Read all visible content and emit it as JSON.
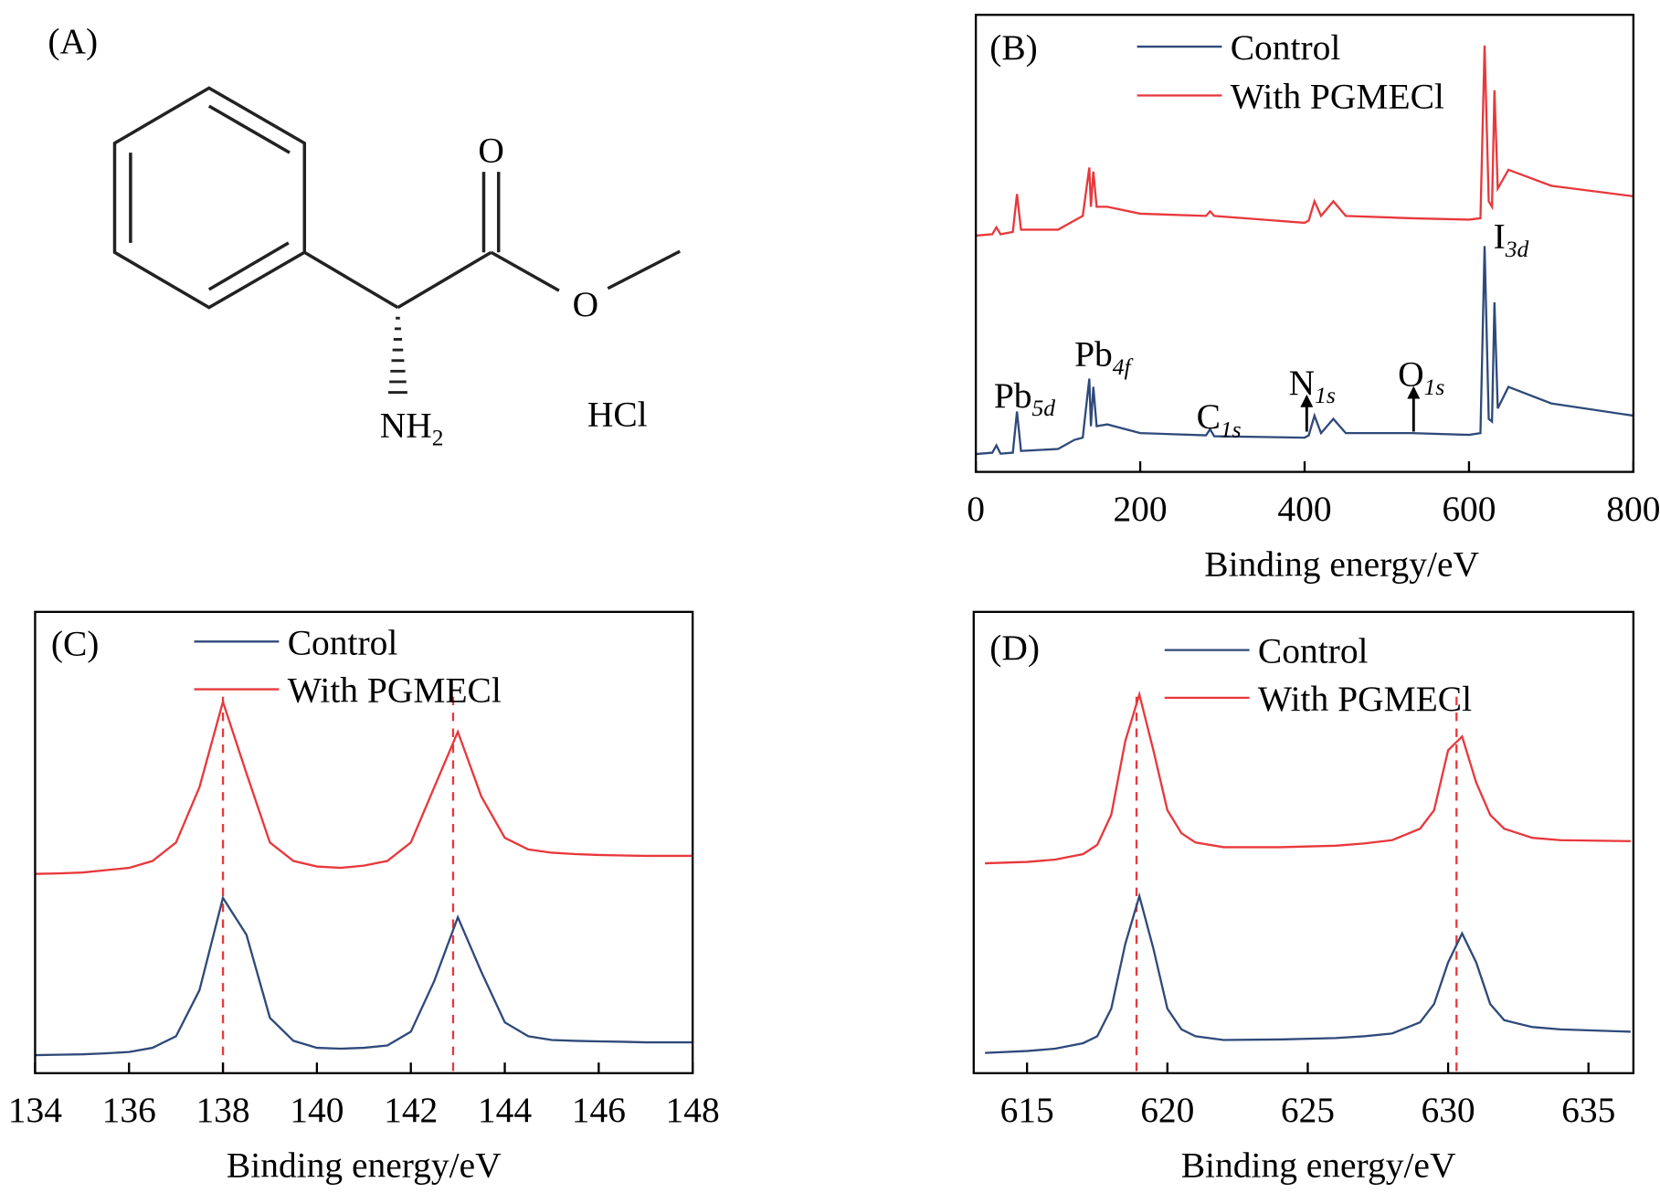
{
  "structure": {
    "label": "(A)",
    "atoms": [
      {
        "text": "O"
      },
      {
        "text": "O"
      },
      {
        "text": "NH",
        "sub": "2"
      },
      {
        "text": "HCl"
      }
    ]
  },
  "chart_data": [
    {
      "type": "line",
      "label": "(B)",
      "xlabel": "Binding energy/eV",
      "legend": "upper center",
      "xlim": [
        0,
        800
      ],
      "xticks": [
        0,
        200,
        400,
        600,
        800
      ],
      "ylim": [
        0,
        100
      ],
      "x": [
        0,
        20,
        25,
        30,
        45,
        50,
        55,
        100,
        120,
        130,
        138,
        140,
        143,
        147,
        160,
        200,
        280,
        285,
        290,
        400,
        405,
        412,
        420,
        435,
        450,
        530,
        600,
        614,
        619,
        624,
        628,
        631,
        635,
        648,
        700,
        800
      ],
      "series": [
        {
          "name": "Control",
          "color": "#2f4a7a",
          "values": [
            3.9,
            4.2,
            5.8,
            4,
            4.2,
            13.2,
            4.6,
            5,
            7,
            7.5,
            20.4,
            10,
            18.6,
            10,
            10.4,
            8.5,
            8,
            9.3,
            7.8,
            7.5,
            8,
            12.3,
            8.5,
            11.6,
            8.5,
            8.5,
            8.1,
            8.5,
            49.4,
            11.6,
            11,
            37.1,
            13.9,
            18.6,
            15,
            12.3
          ]
        },
        {
          "name": "With PGMECl",
          "color": "#e8383c",
          "values": [
            51.7,
            52,
            53.5,
            52,
            52.5,
            60.8,
            53,
            53,
            55,
            56,
            66.6,
            58,
            65.7,
            58,
            58,
            56.5,
            56,
            57,
            56,
            54.5,
            55,
            59.2,
            56,
            59.2,
            56,
            55.5,
            55.2,
            55.5,
            93.3,
            59.2,
            58,
            83.5,
            62,
            66.1,
            62.6,
            60.3
          ]
        }
      ],
      "annotations": [
        {
          "text": "Pb",
          "sub": "5d"
        },
        {
          "text": "Pb",
          "sub": "4f"
        },
        {
          "text": "C",
          "sub": "1s"
        },
        {
          "text": "N",
          "sub": "1s"
        },
        {
          "text": "O",
          "sub": "1s"
        },
        {
          "text": "I",
          "sub": "3d"
        }
      ]
    },
    {
      "type": "line",
      "label": "(C)",
      "xlabel": "Binding energy/eV",
      "legend": "upper left",
      "xlim": [
        134,
        148
      ],
      "xticks": [
        134,
        136,
        138,
        140,
        142,
        144,
        146,
        148
      ],
      "ylim": [
        0,
        100
      ],
      "reference_lines": [
        138.0,
        142.9
      ],
      "reference_color": "#e8383c",
      "x": [
        134,
        134.5,
        135,
        135.5,
        136,
        136.5,
        137,
        137.5,
        138,
        138.5,
        139,
        139.5,
        140,
        140.5,
        141,
        141.5,
        142,
        142.5,
        143,
        143.5,
        144,
        144.5,
        145,
        145.5,
        146,
        146.5,
        147,
        147.5,
        148
      ],
      "series": [
        {
          "name": "Control",
          "color": "#2f4a7a",
          "values": [
            3.9,
            4,
            4.1,
            4.3,
            4.6,
            5.5,
            8,
            18,
            38,
            30,
            12,
            7,
            5.5,
            5.3,
            5.5,
            6,
            9,
            20,
            33.8,
            22,
            11,
            8,
            7.2,
            7,
            6.9,
            6.8,
            6.7,
            6.7,
            6.7
          ]
        },
        {
          "name": "With PGMECl",
          "color": "#e8383c",
          "values": [
            43.2,
            43.3,
            43.5,
            44,
            44.5,
            46,
            50,
            62,
            80.5,
            65,
            50,
            46,
            44.8,
            44.5,
            45,
            46,
            50,
            62,
            74,
            60,
            51,
            48.5,
            47.8,
            47.5,
            47.3,
            47.2,
            47.1,
            47.1,
            47.1
          ]
        }
      ]
    },
    {
      "type": "line",
      "label": "(D)",
      "xlabel": "Binding energy/eV",
      "legend": "upper left",
      "xlim": [
        613.1,
        636.6
      ],
      "xticks": [
        615,
        620,
        625,
        630,
        635
      ],
      "ylim": [
        0,
        100
      ],
      "reference_lines": [
        618.9,
        630.3
      ],
      "reference_color": "#e8383c",
      "x": [
        613.5,
        615,
        616,
        617,
        617.5,
        618,
        618.5,
        619,
        619.5,
        620,
        620.5,
        621,
        622,
        624,
        626,
        627,
        628,
        629,
        629.5,
        630,
        630.5,
        631,
        631.5,
        632,
        633,
        634,
        636.5
      ],
      "series": [
        {
          "name": "Control",
          "color": "#2f4a7a",
          "values": [
            4.4,
            4.8,
            5.3,
            6.5,
            8,
            14,
            28,
            38.4,
            27,
            14,
            9.5,
            8,
            7.2,
            7.3,
            7.6,
            8,
            8.6,
            11,
            15,
            24,
            30.3,
            24,
            15,
            11.5,
            10,
            9.5,
            9
          ]
        },
        {
          "name": "With PGMECl",
          "color": "#e8383c",
          "values": [
            45.5,
            45.8,
            46.3,
            47.5,
            49.5,
            56,
            72,
            82.1,
            70,
            57,
            52,
            50,
            49,
            49,
            49.3,
            49.8,
            50.5,
            53,
            57,
            70,
            73,
            63,
            56,
            53,
            51,
            50.5,
            50.3
          ]
        }
      ]
    }
  ]
}
